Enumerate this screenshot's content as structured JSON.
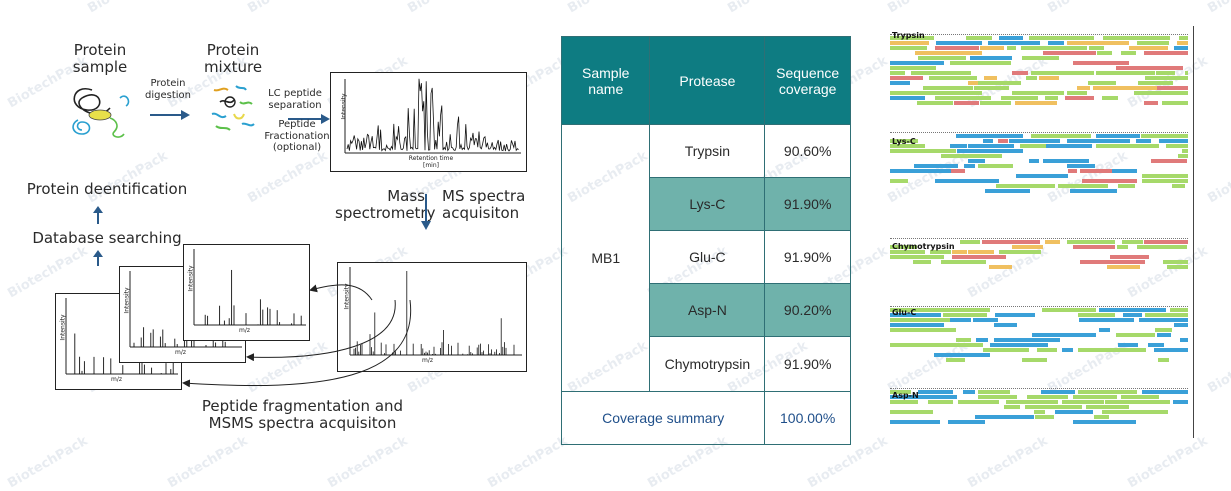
{
  "workflow": {
    "protein_sample": "Protein sample",
    "protein_digestion": "Protein digestion",
    "protein_mixture": "Protein mixture",
    "lc_separation": "LC peptide separation",
    "fractionation": "Peptide Fractionation (optional)",
    "retention_time": "Retention time [min]",
    "intensity": "Intensity",
    "mass_spectrometry": "Mass spectrometry",
    "ms_spectra_acquisition": "MS spectra acquisiton",
    "protein_identification": "Protein deentification",
    "database_searching": "Database searching",
    "mz": "m/z",
    "peptide_fragmentation": "Peptide fragmentation and MSMS spectra acquisiton"
  },
  "table": {
    "headers": [
      "Sample name",
      "Protease",
      "Sequence coverage"
    ],
    "sample": "MB1",
    "rows": [
      {
        "protease": "Trypsin",
        "coverage": "90.60%"
      },
      {
        "protease": "Lys-C",
        "coverage": "91.90%"
      },
      {
        "protease": "Glu-C",
        "coverage": "91.90%"
      },
      {
        "protease": "Asp-N",
        "coverage": "90.20%"
      },
      {
        "protease": "Chymotrypsin",
        "coverage": "91.90%"
      }
    ],
    "summary_label": "Coverage summary",
    "summary_value": "100.00%"
  },
  "coverage_maps": [
    "Trypsin",
    "Lys-C",
    "Chymotrypsin",
    "Glu-C",
    "Asp-N"
  ],
  "colors": {
    "header_teal": "#0e7c82",
    "row_teal": "#6fb2ab",
    "arrow_blue": "#2a5a8a",
    "bar_green": "#a6d96a",
    "bar_blue": "#3aa0d8",
    "bar_red": "#e07a7a"
  },
  "watermark": "BiotechPack"
}
